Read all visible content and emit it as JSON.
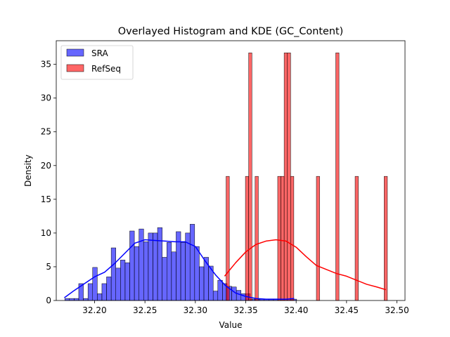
{
  "chart_data": {
    "type": "bar",
    "title": "Overlayed Histogram and KDE (GC_Content)",
    "xlabel": "Value",
    "ylabel": "Density",
    "xlim": [
      32.162,
      32.508
    ],
    "ylim": [
      0,
      38.5
    ],
    "xticks": [
      32.2,
      32.25,
      32.3,
      32.35,
      32.4,
      32.45,
      32.5
    ],
    "xtick_labels": [
      "32.20",
      "32.25",
      "32.30",
      "32.35",
      "32.40",
      "32.45",
      "32.50"
    ],
    "yticks": [
      0,
      5,
      10,
      15,
      20,
      25,
      30,
      35
    ],
    "grid": false,
    "legend_position": "top-left",
    "colors": {
      "SRA": "#0000ff",
      "RefSeq": "#ff0000"
    },
    "series": [
      {
        "name": "SRA",
        "kind": "histogram",
        "bin_width": 0.0046,
        "bins": [
          [
            32.1705,
            0.3
          ],
          [
            32.1751,
            0.3
          ],
          [
            32.1797,
            0.3
          ],
          [
            32.1843,
            2.5
          ],
          [
            32.1889,
            0.3
          ],
          [
            32.1935,
            2.5
          ],
          [
            32.1981,
            4.9
          ],
          [
            32.2027,
            1.0
          ],
          [
            32.2073,
            2.5
          ],
          [
            32.2119,
            3.5
          ],
          [
            32.2165,
            7.8
          ],
          [
            32.2211,
            4.8
          ],
          [
            32.2257,
            6.0
          ],
          [
            32.2303,
            5.6
          ],
          [
            32.2349,
            10.3
          ],
          [
            32.2395,
            8.0
          ],
          [
            32.2441,
            10.6
          ],
          [
            32.2487,
            8.7
          ],
          [
            32.2533,
            10.0
          ],
          [
            32.2579,
            10.0
          ],
          [
            32.2625,
            10.8
          ],
          [
            32.2671,
            6.4
          ],
          [
            32.2717,
            8.6
          ],
          [
            32.2763,
            7.2
          ],
          [
            32.2809,
            10.2
          ],
          [
            32.2855,
            8.6
          ],
          [
            32.2901,
            10.0
          ],
          [
            32.2947,
            11.3
          ],
          [
            32.2993,
            8.0
          ],
          [
            32.3039,
            5.0
          ],
          [
            32.3085,
            6.4
          ],
          [
            32.3131,
            5.1
          ],
          [
            32.3177,
            1.4
          ],
          [
            32.3223,
            3.0
          ],
          [
            32.3269,
            2.5
          ],
          [
            32.3315,
            2.1
          ],
          [
            32.3361,
            2.0
          ],
          [
            32.3407,
            1.5
          ],
          [
            32.3453,
            1.0
          ],
          [
            32.3499,
            1.0
          ],
          [
            32.3545,
            0.2
          ],
          [
            32.3591,
            0.2
          ],
          [
            32.3637,
            0.2
          ],
          [
            32.3683,
            0.2
          ],
          [
            32.3729,
            0.2
          ],
          [
            32.3775,
            0.2
          ],
          [
            32.3821,
            0.2
          ],
          [
            32.3867,
            0.2
          ],
          [
            32.3913,
            0.2
          ],
          [
            32.3959,
            0.2
          ]
        ],
        "kde": [
          [
            32.17,
            0.4
          ],
          [
            32.18,
            1.5
          ],
          [
            32.19,
            2.5
          ],
          [
            32.2,
            3.5
          ],
          [
            32.21,
            4.2
          ],
          [
            32.22,
            5.5
          ],
          [
            32.23,
            7.0
          ],
          [
            32.24,
            8.5
          ],
          [
            32.25,
            9.0
          ],
          [
            32.26,
            8.9
          ],
          [
            32.27,
            8.8
          ],
          [
            32.28,
            8.7
          ],
          [
            32.29,
            8.7
          ],
          [
            32.3,
            8.0
          ],
          [
            32.31,
            5.8
          ],
          [
            32.32,
            3.8
          ],
          [
            32.33,
            2.2
          ],
          [
            32.34,
            1.1
          ],
          [
            32.35,
            0.6
          ],
          [
            32.36,
            0.3
          ],
          [
            32.37,
            0.2
          ],
          [
            32.38,
            0.2
          ],
          [
            32.39,
            0.2
          ],
          [
            32.398,
            0.3
          ]
        ]
      },
      {
        "name": "RefSeq",
        "kind": "histogram",
        "bin_width": 0.0032,
        "bins": [
          [
            32.3305,
            18.4
          ],
          [
            32.3497,
            18.4
          ],
          [
            32.3529,
            36.7
          ],
          [
            32.3593,
            18.4
          ],
          [
            32.3817,
            18.4
          ],
          [
            32.3849,
            18.4
          ],
          [
            32.3881,
            36.7
          ],
          [
            32.3913,
            36.7
          ],
          [
            32.3945,
            18.4
          ],
          [
            32.4201,
            18.4
          ],
          [
            32.4393,
            36.7
          ],
          [
            32.4585,
            18.4
          ],
          [
            32.4873,
            18.4
          ]
        ],
        "kde": [
          [
            32.329,
            3.6
          ],
          [
            32.34,
            5.6
          ],
          [
            32.35,
            7.2
          ],
          [
            32.36,
            8.3
          ],
          [
            32.37,
            8.8
          ],
          [
            32.38,
            9.0
          ],
          [
            32.39,
            8.8
          ],
          [
            32.4,
            7.9
          ],
          [
            32.41,
            6.5
          ],
          [
            32.42,
            5.2
          ],
          [
            32.43,
            4.6
          ],
          [
            32.44,
            4.0
          ],
          [
            32.45,
            3.6
          ],
          [
            32.46,
            3.0
          ],
          [
            32.47,
            2.4
          ],
          [
            32.48,
            2.0
          ],
          [
            32.489,
            1.6
          ]
        ]
      }
    ]
  }
}
